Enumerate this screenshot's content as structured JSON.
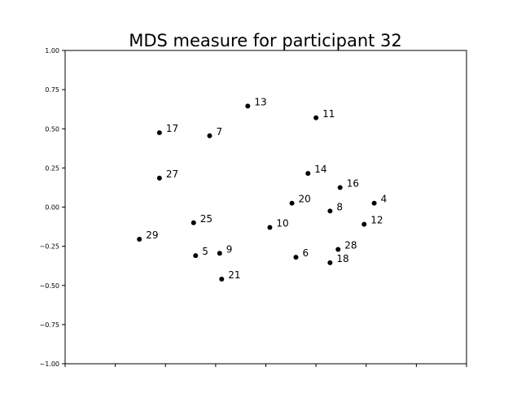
{
  "chart_data": {
    "type": "scatter",
    "title": "MDS measure for participant 32",
    "xlabel": "",
    "ylabel": "",
    "xlim": [
      -1.0,
      1.0
    ],
    "ylim": [
      -1.0,
      1.0
    ],
    "yticks": [
      "1.00",
      "0.75",
      "0.50",
      "0.25",
      "0.00",
      "−0.25",
      "−0.50",
      "−0.75",
      "−1.00"
    ],
    "ytick_values": [
      1.0,
      0.75,
      0.5,
      0.25,
      0.0,
      -0.25,
      -0.5,
      -0.75,
      -1.0
    ],
    "xtick_values": [
      -1.0,
      -0.75,
      -0.5,
      -0.25,
      0.0,
      0.25,
      0.5,
      0.75,
      1.0
    ],
    "grid": false,
    "marker_color": "#000000",
    "points": [
      {
        "label": "13",
        "x": -0.09,
        "y": 0.645
      },
      {
        "label": "11",
        "x": 0.25,
        "y": 0.57
      },
      {
        "label": "17",
        "x": -0.53,
        "y": 0.475
      },
      {
        "label": "7",
        "x": -0.28,
        "y": 0.455
      },
      {
        "label": "14",
        "x": 0.21,
        "y": 0.215
      },
      {
        "label": "27",
        "x": -0.53,
        "y": 0.185
      },
      {
        "label": "16",
        "x": 0.37,
        "y": 0.125
      },
      {
        "label": "20",
        "x": 0.13,
        "y": 0.025
      },
      {
        "label": "4",
        "x": 0.54,
        "y": 0.025
      },
      {
        "label": "8",
        "x": 0.32,
        "y": -0.025
      },
      {
        "label": "25",
        "x": -0.36,
        "y": -0.1
      },
      {
        "label": "12",
        "x": 0.49,
        "y": -0.11
      },
      {
        "label": "10",
        "x": 0.02,
        "y": -0.13
      },
      {
        "label": "29",
        "x": -0.63,
        "y": -0.205
      },
      {
        "label": "28",
        "x": 0.36,
        "y": -0.27
      },
      {
        "label": "9",
        "x": -0.23,
        "y": -0.295
      },
      {
        "label": "5",
        "x": -0.35,
        "y": -0.31
      },
      {
        "label": "6",
        "x": 0.15,
        "y": -0.32
      },
      {
        "label": "18",
        "x": 0.32,
        "y": -0.355
      },
      {
        "label": "21",
        "x": -0.22,
        "y": -0.46
      }
    ]
  }
}
